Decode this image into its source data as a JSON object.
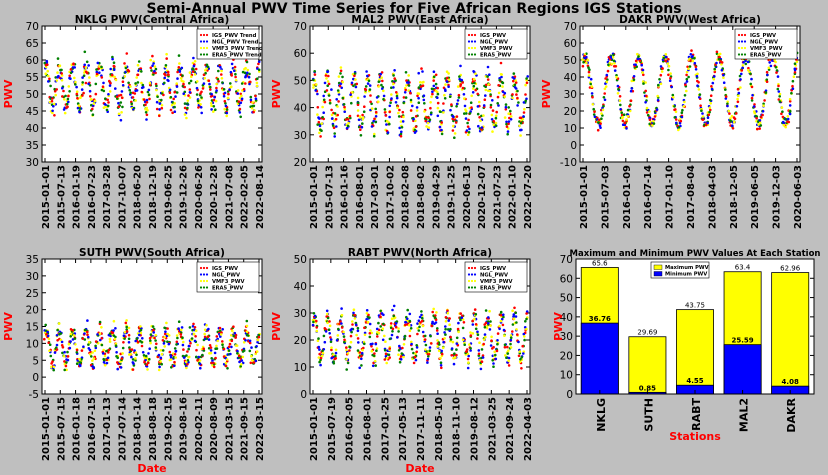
{
  "suptitle": "Semi-Annual PWV Time Series for Five African Regions IGS Stations",
  "colors": {
    "IGS": "#ff0000",
    "NGL": "#0000ff",
    "VMF3": "#ffff00",
    "ERA5": "#008000",
    "max_bar": "#ffff00",
    "min_bar": "#0000ff",
    "axis_label": "#ff0000"
  },
  "chart_data": [
    {
      "type": "scatter",
      "title": "NKLG PWV(Central Africa)",
      "xlabel": "",
      "ylabel": "PWV",
      "ylim": [
        30,
        70
      ],
      "yticks": [
        30,
        35,
        40,
        45,
        50,
        55,
        60,
        65,
        70
      ],
      "xticks": [
        "2015-01-01",
        "2015-07-13",
        "2016-01-19",
        "2016-07-23",
        "2017-03-28",
        "2017-10-07",
        "2018-06-20",
        "2018-12-19",
        "2019-06-25",
        "2019-12-26",
        "2020-06-26",
        "2020-12-28",
        "2021-07-08",
        "2022-02-05",
        "2022-08-14"
      ],
      "legend": [
        "IGS_PWV Trend",
        "NGL_PWV Trend",
        "VMF3_PWV Trend",
        "ERA5_PWV Trend"
      ],
      "legend_loc": "upper right",
      "series_profile": {
        "mean": 52,
        "amplitude": 6,
        "cycles": 16,
        "noise": 4.5,
        "min": 35,
        "max": 65
      }
    },
    {
      "type": "scatter",
      "title": "MAL2 PWV(East Africa)",
      "xlabel": "",
      "ylabel": "PWV",
      "ylim": [
        20,
        70
      ],
      "yticks": [
        20,
        30,
        40,
        50,
        60,
        70
      ],
      "xticks": [
        "2015-01-01",
        "2015-07-13",
        "2016-01-16",
        "2016-08-01",
        "2017-03-01",
        "2017-10-02",
        "2018-02-08",
        "2018-08-02",
        "2019-04-29",
        "2019-11-25",
        "2020-06-13",
        "2020-12-07",
        "2021-07-23",
        "2022-01-10",
        "2022-07-20"
      ],
      "legend": [
        "IGS_PWV",
        "NGL_PWV",
        "VMF3_PWV",
        "ERA5_PWV"
      ],
      "legend_loc": "upper right",
      "series_profile": {
        "mean": 42,
        "amplitude": 9,
        "cycles": 16,
        "noise": 5,
        "min": 23,
        "max": 64
      }
    },
    {
      "type": "scatter",
      "title": "DAKR PWV(West Africa)",
      "xlabel": "",
      "ylabel": "PWV",
      "ylim": [
        -10,
        70
      ],
      "yticks": [
        -10,
        0,
        10,
        20,
        30,
        40,
        50,
        60,
        70
      ],
      "xticks": [
        "2015-01-01",
        "2015-07-03",
        "2016-01-09",
        "2016-07-14",
        "2017-01-10",
        "2017-08-04",
        "2018-04-03",
        "2018-12-05",
        "2019-06-05",
        "2019-12-03",
        "2020-06-03"
      ],
      "legend": [
        "IGS_PWV",
        "NGL_PWV",
        "VMF3_PWV",
        "ERA5_PWV"
      ],
      "legend_loc": "upper right",
      "series_profile": {
        "mean": 32,
        "amplitude": 20,
        "cycles": 8,
        "noise": 5,
        "min": 5,
        "max": 63
      }
    },
    {
      "type": "scatter",
      "title": "SUTH PWV(South Africa)",
      "xlabel": "Date",
      "ylabel": "PWV",
      "ylim": [
        -5,
        35
      ],
      "yticks": [
        -5,
        0,
        5,
        10,
        15,
        20,
        25,
        30,
        35
      ],
      "xticks": [
        "2015-01-01",
        "2015-07-15",
        "2016-01-18",
        "2016-07-15",
        "2017-01-13",
        "2017-07-14",
        "2018-01-14",
        "2018-08-18",
        "2019-02-15",
        "2019-08-16",
        "2020-02-11",
        "2020-08-09",
        "2021-03-15",
        "2021-09-15",
        "2022-03-15"
      ],
      "legend": [
        "IGS_PWV",
        "NGL_PWV",
        "VMF3_PWV",
        "ERA5_PWV"
      ],
      "legend_loc": "upper right",
      "series_profile": {
        "mean": 9,
        "amplitude": 5,
        "cycles": 16,
        "noise": 3.5,
        "min": 1,
        "max": 30
      }
    },
    {
      "type": "scatter",
      "title": "RABT PWV(North Africa)",
      "xlabel": "Date",
      "ylabel": "PWV",
      "ylim": [
        0,
        50
      ],
      "yticks": [
        0,
        10,
        20,
        30,
        40,
        50
      ],
      "xticks": [
        "2015-01-01",
        "2015-07-19",
        "2016-02-05",
        "2016-08-01",
        "2017-01-25",
        "2017-05-13",
        "2017-11-11",
        "2018-05-10",
        "2018-11-10",
        "2019-08-12",
        "2021-03-25",
        "2021-09-24",
        "2022-04-03"
      ],
      "legend": [
        "IGS_PWV",
        "NGL_PWV",
        "VMF3_PWV",
        "ERA5_PWV"
      ],
      "legend_loc": "upper right",
      "series_profile": {
        "mean": 21,
        "amplitude": 8,
        "cycles": 16,
        "noise": 4.5,
        "min": 5,
        "max": 44
      }
    },
    {
      "type": "bar",
      "title": "Maximum and Minimum PWV Values At Each Station",
      "xlabel": "Stations",
      "ylabel": "PWV",
      "ylim": [
        0,
        70
      ],
      "yticks": [
        0,
        10,
        20,
        30,
        40,
        50,
        60,
        70
      ],
      "categories": [
        "NKLG",
        "SUTH",
        "RABT",
        "MAL2",
        "DAKR"
      ],
      "series": [
        {
          "name": "Maximum PWV",
          "values": [
            65.6,
            29.69,
            43.75,
            63.4,
            62.96
          ]
        },
        {
          "name": "Minimum PWV",
          "values": [
            36.76,
            0.85,
            4.55,
            25.59,
            4.08
          ]
        }
      ],
      "value_labels_max": [
        "65.6",
        "29.69",
        "43.75",
        "63.4",
        "62.96"
      ],
      "value_labels_min": [
        "36.76",
        "0.85",
        "4.55",
        "25.59",
        "4.08"
      ],
      "legend_loc": "upper center"
    }
  ]
}
